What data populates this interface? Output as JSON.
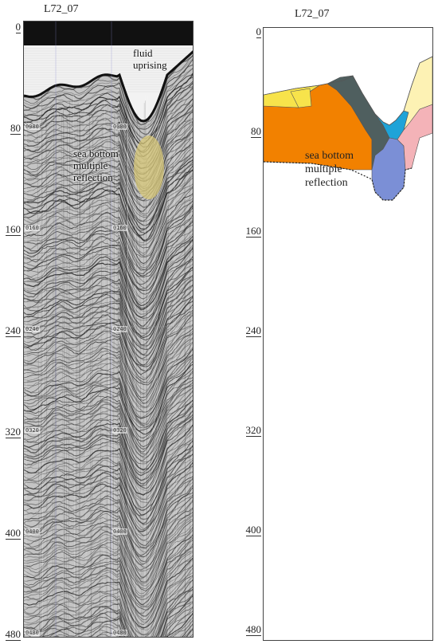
{
  "left_panel": {
    "title": "L72_07",
    "depth_ticks": [
      "0",
      "80",
      "160",
      "240",
      "320",
      "400",
      "480"
    ],
    "inner_ticks": [
      "0080",
      "0160",
      "0240",
      "0320",
      "0400",
      "0480"
    ],
    "annotations": {
      "fluid": "fluid\nuprising",
      "multiple": "sea bottom\nmultiple\nreflection"
    },
    "highlight_color": "#d8c878"
  },
  "right_panel": {
    "title": "L72_07",
    "depth_ticks": [
      "0",
      "80",
      "160",
      "240",
      "320",
      "400",
      "480"
    ],
    "annotation": "sea bottom\nmultiple\nreflection",
    "colors": {
      "orange": "#f28100",
      "yellow": "#f7e34b",
      "dark_gray": "#4f5f5f",
      "blue": "#1ea3d8",
      "periwinkle": "#7b8fd6",
      "pink": "#f4b3b8",
      "cream": "#fdf2b4"
    }
  }
}
